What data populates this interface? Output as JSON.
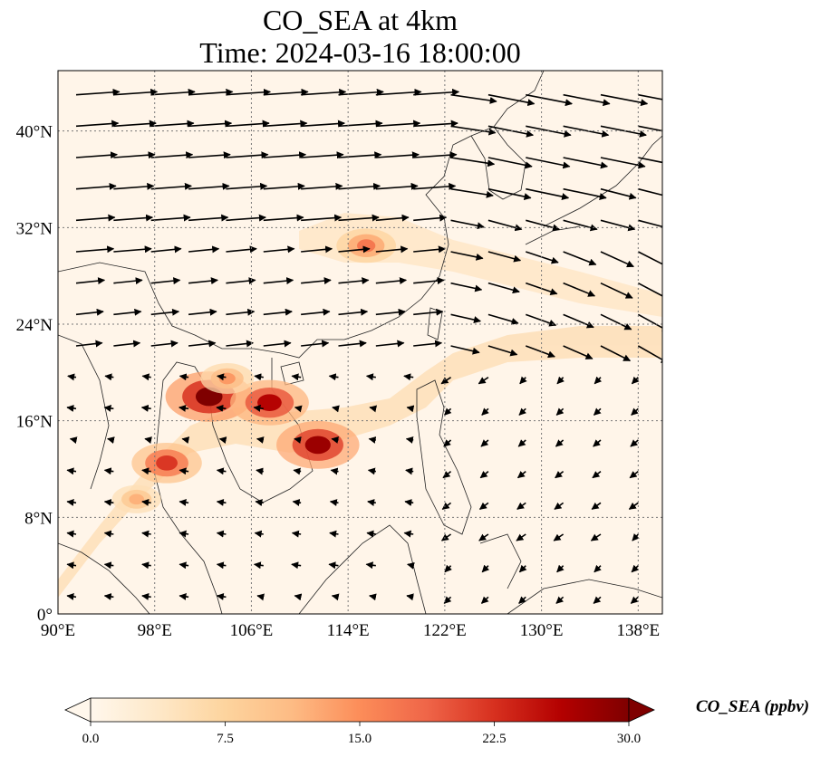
{
  "title": {
    "line1": "CO_SEA at 4km",
    "line2": "Time: 2024-03-16 18:00:00"
  },
  "map": {
    "extent": {
      "lon_min": 90,
      "lon_max": 140,
      "lat_min": 0,
      "lat_max": 45
    },
    "lon_ticks": [
      90,
      98,
      106,
      114,
      122,
      130,
      138
    ],
    "lat_ticks": [
      0,
      8,
      16,
      24,
      32,
      40
    ],
    "lon_tick_labels": [
      "90°E",
      "98°E",
      "106°E",
      "114°E",
      "122°E",
      "130°E",
      "138°E"
    ],
    "lat_tick_labels": [
      "0°",
      "8°N",
      "16°N",
      "24°N",
      "32°N",
      "40°N"
    ],
    "gridlines": true,
    "gridline_style": "dotted"
  },
  "field": {
    "variable": "CO_SEA",
    "units": "ppbv",
    "hotspots": [
      {
        "lon": 102.5,
        "lat": 18.0,
        "value": 30
      },
      {
        "lon": 107.5,
        "lat": 17.5,
        "value": 26
      },
      {
        "lon": 111.5,
        "lat": 14.0,
        "value": 28
      },
      {
        "lon": 99.0,
        "lat": 12.5,
        "value": 22
      },
      {
        "lon": 115.5,
        "lat": 30.5,
        "value": 17
      },
      {
        "lon": 104.0,
        "lat": 19.5,
        "value": 14
      },
      {
        "lon": 96.5,
        "lat": 9.5,
        "value": 12
      }
    ]
  },
  "colorbar": {
    "label": "CO_SEA (ppbv)",
    "vmin": 0,
    "vmax": 30,
    "extend": "both",
    "tick_values": [
      0,
      7.5,
      15,
      22.5,
      30
    ],
    "tick_labels": [
      "0.0",
      "7.5",
      "15.0",
      "22.5",
      "30.0"
    ],
    "colormap": "OrRd",
    "colors": [
      "#fff7ec",
      "#fee8c8",
      "#fdd49e",
      "#fdbb84",
      "#fc8d59",
      "#ef6548",
      "#d7301f",
      "#b30000",
      "#7f0000"
    ]
  }
}
